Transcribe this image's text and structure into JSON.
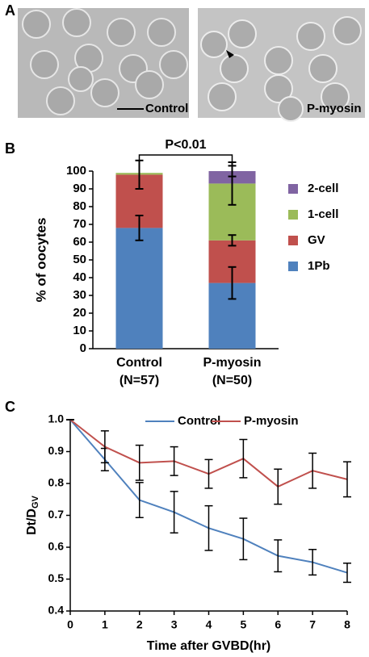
{
  "panel_labels": [
    "A",
    "B",
    "C"
  ],
  "micrographs": [
    "Control",
    "P-myosin"
  ],
  "chart_data": [
    {
      "type": "stacked-bar",
      "y_label": "% of oocytes",
      "categories": [
        "Control",
        "P-myosin"
      ],
      "category_sublabels": [
        "(N=57)",
        "(N=50)"
      ],
      "annotation": "P<0.01",
      "ylim": [
        0,
        100
      ],
      "yticks": [
        0,
        10,
        20,
        30,
        40,
        50,
        60,
        70,
        80,
        90,
        100
      ],
      "legend": "right",
      "series": [
        {
          "name": "1Pb",
          "color": "#4f81bd",
          "values": [
            68,
            37
          ],
          "errors": [
            7,
            9
          ]
        },
        {
          "name": "GV",
          "color": "#c0504d",
          "values": [
            30,
            24
          ],
          "errors": [
            8,
            3
          ]
        },
        {
          "name": "1-cell",
          "color": "#9bbb59",
          "values": [
            1,
            32
          ],
          "errors": [
            null,
            12
          ]
        },
        {
          "name": "2-cell",
          "color": "#8064a2",
          "values": [
            0,
            7
          ],
          "errors": [
            null,
            3
          ]
        }
      ]
    },
    {
      "type": "line",
      "x_label": "Time after GVBD(hr)",
      "y_label": "Dt/D",
      "y_label_subscript": "GV",
      "x": [
        0,
        1,
        2,
        3,
        4,
        5,
        6,
        7,
        8
      ],
      "xlim": [
        0,
        8
      ],
      "xticks": [
        0,
        1,
        2,
        3,
        4,
        5,
        6,
        7,
        8
      ],
      "ylim": [
        0.4,
        1.0
      ],
      "yticks": [
        {
          "value": 0.4,
          "label": "0.4"
        },
        {
          "value": 0.5,
          "label": "0.5"
        },
        {
          "value": 0.6,
          "label": "0.6"
        },
        {
          "value": 0.7,
          "label": "0.7"
        },
        {
          "value": 0.8,
          "label": "0.8"
        },
        {
          "value": 0.9,
          "label": "0.9"
        },
        {
          "value": 1.0,
          "label": "1.0"
        }
      ],
      "legend": "top",
      "series": [
        {
          "name": "Control",
          "color": "#4f81bd",
          "values": [
            1,
            0.875,
            0.748,
            0.71,
            0.66,
            0.626,
            0.573,
            0.553,
            0.52
          ],
          "errors": [
            0,
            0.035,
            0.055,
            0.065,
            0.07,
            0.065,
            0.05,
            0.04,
            0.03
          ]
        },
        {
          "name": "P-myosin",
          "color": "#c0504d",
          "values": [
            1,
            0.915,
            0.865,
            0.87,
            0.83,
            0.878,
            0.79,
            0.84,
            0.813
          ],
          "errors": [
            0,
            0.05,
            0.055,
            0.045,
            0.045,
            0.06,
            0.055,
            0.055,
            0.055
          ]
        }
      ]
    }
  ]
}
